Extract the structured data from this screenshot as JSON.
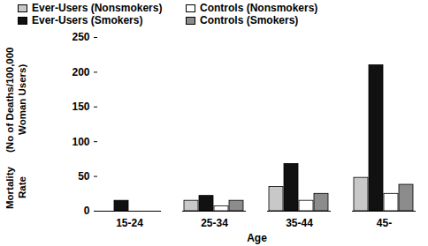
{
  "chart_data": {
    "type": "bar",
    "ylabel": "Mortality Rate\n(No of Deaths/100,000 Woman Users)",
    "xlabel": "Age",
    "categories": [
      "15-24",
      "25-34",
      "35-44",
      "45-"
    ],
    "series": [
      {
        "name": "Ever-Users (Nonsmokers)",
        "color": "#c8c8c8",
        "values": [
          0,
          15,
          35,
          48
        ]
      },
      {
        "name": "Ever-Users (Smokers)",
        "color": "#111111",
        "values": [
          15,
          22,
          68,
          210
        ]
      },
      {
        "name": "Controls (Nonsmokers)",
        "color": "#ffffff",
        "values": [
          0,
          7,
          15,
          25
        ]
      },
      {
        "name": "Controls (Smokers)",
        "color": "#8c8c8c",
        "values": [
          0,
          15,
          25,
          38
        ]
      }
    ],
    "ylim": [
      0,
      250
    ],
    "yticks": [
      0,
      50,
      100,
      150,
      200,
      250
    ],
    "legend": "top"
  }
}
